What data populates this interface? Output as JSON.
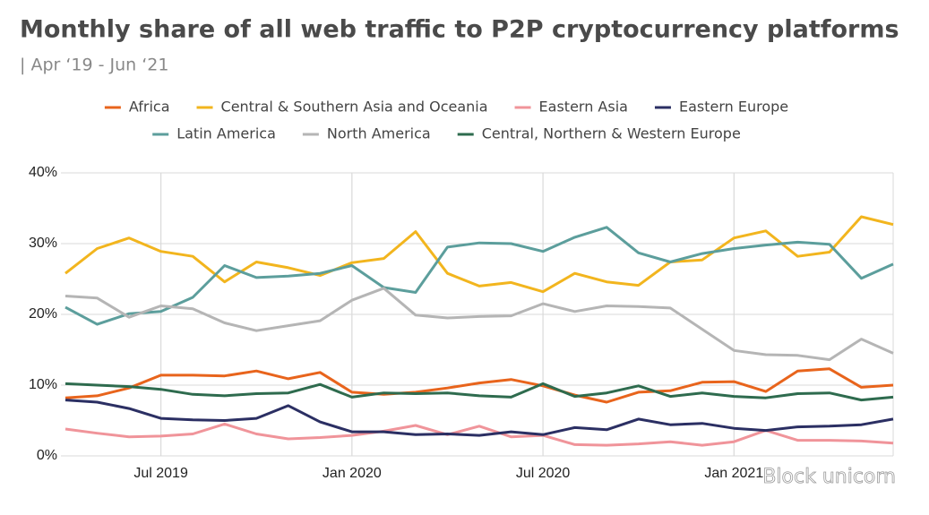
{
  "chart_data": {
    "type": "line",
    "title": "Monthly share of all web traffic to P2P cryptocurrency platforms",
    "subtitle": "| Apr ‘19 - Jun ‘21",
    "watermark": "Block unicorn",
    "categories": [
      null,
      null,
      null,
      "Jul 2019",
      null,
      null,
      null,
      null,
      null,
      "Jan 2020",
      null,
      null,
      null,
      null,
      null,
      "Jul 2020",
      null,
      null,
      null,
      null,
      null,
      "Jan 2021",
      null,
      null,
      null,
      null,
      null
    ],
    "ylim": [
      0,
      40
    ],
    "yticks": [
      {
        "value": 0,
        "label": "0%"
      },
      {
        "value": 10,
        "label": "10%"
      },
      {
        "value": 20,
        "label": "20%"
      },
      {
        "value": 30,
        "label": "30%"
      },
      {
        "value": 40,
        "label": "40%"
      }
    ],
    "grid": true,
    "legend": "top",
    "series": [
      {
        "name": "Africa",
        "color": "#e8641c",
        "values": [
          8.2,
          8.5,
          9.6,
          11.4,
          11.4,
          11.3,
          12.0,
          10.9,
          11.8,
          9.0,
          8.7,
          9.0,
          9.6,
          10.3,
          10.8,
          9.9,
          8.6,
          7.6,
          9.0,
          9.2,
          10.4,
          10.5,
          9.1,
          12.0,
          12.3,
          9.7,
          10.0
        ]
      },
      {
        "name": "Central & Southern Asia and Oceania",
        "color": "#f2b51e",
        "values": [
          25.8,
          29.3,
          30.8,
          28.9,
          28.2,
          24.6,
          27.4,
          26.6,
          25.5,
          27.3,
          27.9,
          31.7,
          25.8,
          24.0,
          24.5,
          23.2,
          25.8,
          24.6,
          24.1,
          27.4,
          27.7,
          30.8,
          31.8,
          28.2,
          28.8,
          33.8,
          32.7
        ]
      },
      {
        "name": "Eastern Asia",
        "color": "#f0949a",
        "values": [
          3.8,
          3.2,
          2.7,
          2.8,
          3.1,
          4.5,
          3.1,
          2.4,
          2.6,
          2.9,
          3.5,
          4.3,
          3.0,
          4.2,
          2.7,
          2.9,
          1.6,
          1.5,
          1.7,
          2.0,
          1.5,
          2.0,
          3.6,
          2.2,
          2.2,
          2.1,
          1.8
        ]
      },
      {
        "name": "Eastern Europe",
        "color": "#2b2f63",
        "values": [
          7.9,
          7.6,
          6.7,
          5.3,
          5.1,
          5.0,
          5.3,
          7.1,
          4.8,
          3.4,
          3.4,
          3.0,
          3.1,
          2.9,
          3.4,
          3.0,
          4.0,
          3.7,
          5.2,
          4.4,
          4.6,
          3.9,
          3.6,
          4.1,
          4.2,
          4.4,
          5.2
        ]
      },
      {
        "name": "Latin America",
        "color": "#5c9e9c",
        "values": [
          21.0,
          18.6,
          20.1,
          20.4,
          22.4,
          26.9,
          25.2,
          25.4,
          25.8,
          26.9,
          23.8,
          23.1,
          29.5,
          30.1,
          30.0,
          28.9,
          30.9,
          32.3,
          28.7,
          27.4,
          28.6,
          29.3,
          29.8,
          30.2,
          29.9,
          25.1,
          27.1
        ]
      },
      {
        "name": "North America",
        "color": "#b5b5b5",
        "values": [
          22.6,
          22.3,
          19.6,
          21.2,
          20.8,
          18.8,
          17.7,
          18.4,
          19.1,
          22.0,
          23.7,
          19.9,
          19.5,
          19.7,
          19.8,
          21.5,
          20.4,
          21.2,
          21.1,
          20.9,
          17.9,
          14.9,
          14.3,
          14.2,
          13.6,
          16.5,
          14.5
        ]
      },
      {
        "name": "Central, Northern & Western Europe",
        "color": "#2e6b4e",
        "values": [
          10.2,
          10.0,
          9.8,
          9.4,
          8.7,
          8.5,
          8.8,
          8.9,
          10.1,
          8.3,
          8.9,
          8.8,
          8.9,
          8.5,
          8.3,
          10.2,
          8.4,
          8.9,
          9.9,
          8.4,
          8.9,
          8.4,
          8.2,
          8.8,
          8.9,
          7.9,
          8.3
        ]
      }
    ]
  }
}
